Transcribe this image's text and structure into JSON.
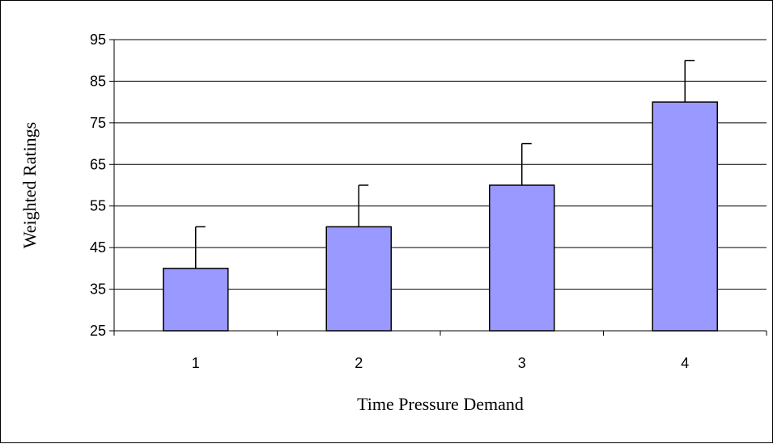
{
  "chart_data": {
    "type": "bar",
    "title": "",
    "xlabel": "Time Pressure Demand",
    "ylabel": "Weighted Ratings",
    "categories": [
      "1",
      "2",
      "3",
      "4"
    ],
    "values": [
      40,
      50,
      60,
      80
    ],
    "error_bars": [
      10,
      10,
      10,
      10
    ],
    "ylim": [
      25,
      95
    ],
    "yticks": [
      25,
      35,
      45,
      55,
      65,
      75,
      85,
      95
    ],
    "grid": true,
    "legend": "none",
    "colors": {
      "bar_fill": "#9999ff",
      "bar_stroke": "#000000",
      "gridline": "#000000"
    }
  }
}
